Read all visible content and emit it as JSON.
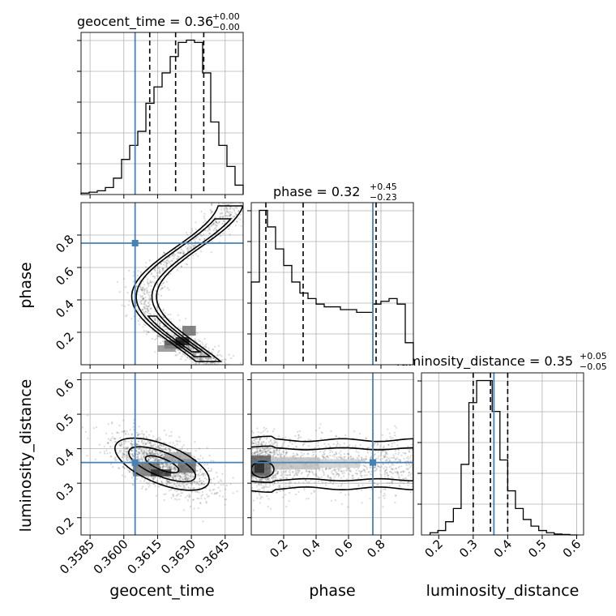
{
  "chart_data": {
    "type": "corner",
    "truth_color": "#4682b4",
    "parameters": [
      {
        "name": "geocent_time",
        "label": "geocent_time",
        "title": {
          "prefix": "geocent_time = ",
          "value": "0.36",
          "upper": "+0.00",
          "lower": "−0.00"
        },
        "range": [
          0.3581,
          0.3653
        ],
        "ticks": [
          "0.3585",
          "0.3600",
          "0.3615",
          "0.3630",
          "0.3645"
        ],
        "tick_values": [
          0.3585,
          0.36,
          0.3615,
          0.363,
          0.3645
        ],
        "truth": 0.3605,
        "quantiles": [
          0.36115,
          0.3623,
          0.36355
        ],
        "hist_edges_start": 0.3581,
        "hist_bin_width": 0.00036,
        "hist_counts": [
          0.3,
          0.5,
          0.8,
          1.5,
          3.5,
          7.5,
          10.5,
          13.5,
          19.5,
          23.0,
          26.0,
          29.5,
          32.5,
          33.0,
          32.5,
          26.0,
          15.5,
          10.5,
          6.0,
          2.0
        ]
      },
      {
        "name": "phase",
        "label": "phase",
        "title": {
          "prefix": "phase = ",
          "value": "0.32",
          "upper": "+0.45",
          "lower": "−0.23"
        },
        "range": [
          0.0,
          1.0
        ],
        "ticks": [
          "0.2",
          "0.4",
          "0.6",
          "0.8"
        ],
        "tick_values": [
          0.2,
          0.4,
          0.6,
          0.8
        ],
        "truth": 0.75,
        "quantiles": [
          0.09,
          0.32,
          0.77
        ],
        "hist_edges_start": 0.0,
        "hist_bin_width": 0.05,
        "hist_counts": [
          15,
          28,
          25,
          21,
          18,
          15,
          13,
          12,
          11,
          10.5,
          10.5,
          10,
          10,
          9.5,
          9.5,
          11,
          11.5,
          12,
          11,
          4
        ]
      },
      {
        "name": "luminosity_distance",
        "label": "luminosity_distance",
        "title": {
          "prefix": "luminosity_distance = ",
          "value": "0.35",
          "upper": "+0.05",
          "lower": "−0.05"
        },
        "range": [
          0.15,
          0.62
        ],
        "ticks": [
          "0.2",
          "0.3",
          "0.4",
          "0.5",
          "0.6"
        ],
        "tick_values": [
          0.2,
          0.3,
          0.4,
          0.5,
          0.6
        ],
        "truth": 0.36,
        "quantiles": [
          0.3,
          0.35,
          0.4
        ],
        "hist_edges_start": 0.175,
        "hist_bin_width": 0.0225,
        "hist_counts": [
          0.5,
          1,
          3,
          6,
          16,
          30,
          35,
          35,
          28,
          17,
          10,
          6,
          3.5,
          2,
          1,
          0.5,
          0.2,
          0.1,
          0
        ]
      }
    ],
    "panel_axes": {
      "phase_vs_time": {
        "yticks": [
          "0.2",
          "0.4",
          "0.6",
          "0.8"
        ],
        "ytick_values": [
          0.2,
          0.4,
          0.6,
          0.8
        ],
        "ylim": [
          0.0,
          1.0
        ]
      },
      "dist_vs_time": {
        "yticks": [
          "0.2",
          "0.3",
          "0.4",
          "0.5",
          "0.6"
        ],
        "ytick_values": [
          0.2,
          0.3,
          0.4,
          0.5,
          0.6
        ],
        "ylim": [
          0.15,
          0.62
        ]
      }
    }
  }
}
